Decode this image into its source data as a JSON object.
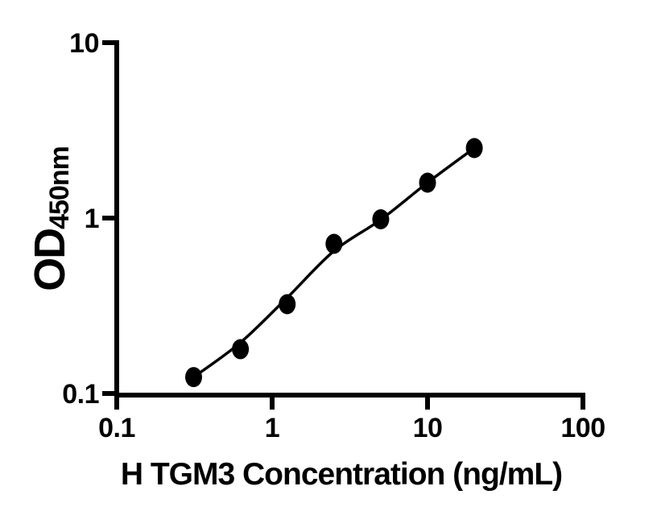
{
  "figure": {
    "background_color": "#ffffff",
    "ink_color": "#000000"
  },
  "chart_data": {
    "type": "scatter",
    "title": "",
    "xlabel": "H TGM3 Concentration (ng/mL)",
    "ylabel": "OD",
    "ylabel_subscript": "450nm",
    "x_scale": "log",
    "y_scale": "log",
    "xlim": [
      0.1,
      100
    ],
    "ylim": [
      0.1,
      10
    ],
    "x_ticks": [
      0.1,
      1,
      10,
      100
    ],
    "x_tick_labels": [
      "0.1",
      "1",
      "10",
      "100"
    ],
    "y_ticks": [
      0.1,
      1,
      10
    ],
    "y_tick_labels": [
      "0.1",
      "1",
      "10"
    ],
    "grid": false,
    "legend": false,
    "series": [
      {
        "name": "standard-curve-points",
        "marker": "filled-circle",
        "color": "#000000",
        "x": [
          0.3125,
          0.625,
          1.25,
          2.5,
          5,
          10,
          20
        ],
        "y": [
          0.124,
          0.179,
          0.323,
          0.713,
          0.984,
          1.592,
          2.506
        ]
      }
    ],
    "fit_curve": {
      "name": "fitted-standard-curve",
      "color": "#000000",
      "x": [
        0.3125,
        0.625,
        1.25,
        2.5,
        5,
        10,
        20
      ],
      "y": [
        0.124,
        0.195,
        0.352,
        0.649,
        0.979,
        1.592,
        2.506
      ]
    }
  }
}
